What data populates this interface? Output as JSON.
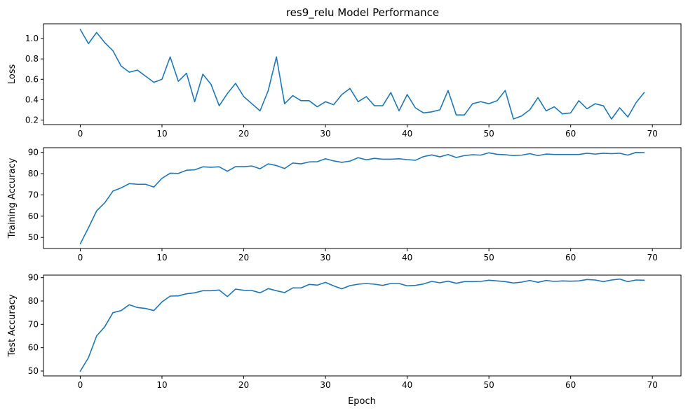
{
  "chart_data": {
    "type": "line",
    "title": "res9_relu Model Performance",
    "line_color": "#1f77b4",
    "grid": false,
    "x": [
      0,
      1,
      2,
      3,
      4,
      5,
      6,
      7,
      8,
      9,
      10,
      11,
      12,
      13,
      14,
      15,
      16,
      17,
      18,
      19,
      20,
      21,
      22,
      23,
      24,
      25,
      26,
      27,
      28,
      29,
      30,
      31,
      32,
      33,
      34,
      35,
      36,
      37,
      38,
      39,
      40,
      41,
      42,
      43,
      44,
      45,
      46,
      47,
      48,
      49,
      50,
      51,
      52,
      53,
      54,
      55,
      56,
      57,
      58,
      59,
      60,
      61,
      62,
      63,
      64,
      65,
      66,
      67,
      68,
      69
    ],
    "xlabel": "Epoch",
    "xlim": [
      -4.5,
      73.5
    ],
    "xticks": [
      0,
      10,
      20,
      30,
      40,
      50,
      60,
      70
    ],
    "xtick_labels": [
      "0",
      "10",
      "20",
      "30",
      "40",
      "50",
      "60",
      "70"
    ],
    "panels": [
      {
        "ylabel": "Loss",
        "ylim": [
          0.155,
          1.145
        ],
        "yticks": [
          0.2,
          0.4,
          0.6,
          0.8,
          1.0
        ],
        "ytick_labels": [
          "0.2",
          "0.4",
          "0.6",
          "0.8",
          "1.0"
        ],
        "values": [
          1.09,
          0.95,
          1.06,
          0.96,
          0.88,
          0.73,
          0.67,
          0.69,
          0.63,
          0.57,
          0.6,
          0.82,
          0.58,
          0.66,
          0.38,
          0.65,
          0.55,
          0.34,
          0.46,
          0.56,
          0.43,
          0.36,
          0.29,
          0.49,
          0.82,
          0.36,
          0.44,
          0.39,
          0.39,
          0.33,
          0.38,
          0.35,
          0.45,
          0.51,
          0.38,
          0.43,
          0.34,
          0.34,
          0.47,
          0.29,
          0.45,
          0.32,
          0.27,
          0.28,
          0.3,
          0.49,
          0.25,
          0.25,
          0.36,
          0.38,
          0.36,
          0.39,
          0.49,
          0.21,
          0.24,
          0.3,
          0.42,
          0.29,
          0.33,
          0.26,
          0.27,
          0.39,
          0.31,
          0.36,
          0.34,
          0.21,
          0.32,
          0.23,
          0.37,
          0.47
        ]
      },
      {
        "ylabel": "Training Accuracy",
        "ylim": [
          44.8,
          92.2
        ],
        "yticks": [
          50,
          60,
          70,
          80,
          90
        ],
        "ytick_labels": [
          "50",
          "60",
          "70",
          "80",
          "90"
        ],
        "values": [
          47.0,
          54.5,
          62.5,
          66.3,
          71.8,
          73.3,
          75.3,
          75.0,
          75.0,
          73.7,
          77.8,
          80.2,
          80.1,
          81.6,
          81.8,
          83.2,
          83.0,
          83.2,
          81.1,
          83.3,
          83.3,
          83.6,
          82.3,
          84.6,
          83.8,
          82.4,
          85.0,
          84.6,
          85.5,
          85.6,
          87.0,
          86.0,
          85.3,
          85.9,
          87.5,
          86.5,
          87.2,
          86.8,
          86.8,
          87.0,
          86.6,
          86.3,
          88.0,
          88.8,
          87.9,
          89.0,
          87.6,
          88.5,
          88.9,
          88.7,
          89.8,
          89.1,
          88.9,
          88.5,
          88.7,
          89.4,
          88.5,
          89.2,
          89.0,
          89.0,
          89.0,
          89.0,
          89.6,
          89.2,
          89.6,
          89.4,
          89.6,
          88.7,
          90.0,
          89.9
        ]
      },
      {
        "ylabel": "Test Accuracy",
        "ylim": [
          47.9,
          91.1
        ],
        "yticks": [
          50,
          60,
          70,
          80,
          90
        ],
        "ytick_labels": [
          "50",
          "60",
          "70",
          "80",
          "90"
        ],
        "values": [
          49.9,
          55.7,
          65.0,
          69.0,
          75.0,
          75.9,
          78.4,
          77.2,
          76.8,
          75.9,
          79.6,
          82.1,
          82.2,
          83.1,
          83.5,
          84.4,
          84.4,
          84.7,
          81.9,
          85.1,
          84.6,
          84.5,
          83.5,
          85.3,
          84.4,
          83.6,
          85.6,
          85.6,
          87.1,
          86.8,
          88.0,
          86.5,
          85.2,
          86.6,
          87.2,
          87.5,
          87.2,
          86.7,
          87.5,
          87.5,
          86.5,
          86.7,
          87.3,
          88.4,
          87.8,
          88.5,
          87.6,
          88.3,
          88.3,
          88.4,
          88.9,
          88.6,
          88.3,
          87.7,
          88.1,
          88.8,
          88.0,
          88.8,
          88.4,
          88.6,
          88.5,
          88.6,
          89.2,
          89.0,
          88.3,
          89.0,
          89.4,
          88.3,
          89.0,
          88.9
        ]
      }
    ]
  }
}
